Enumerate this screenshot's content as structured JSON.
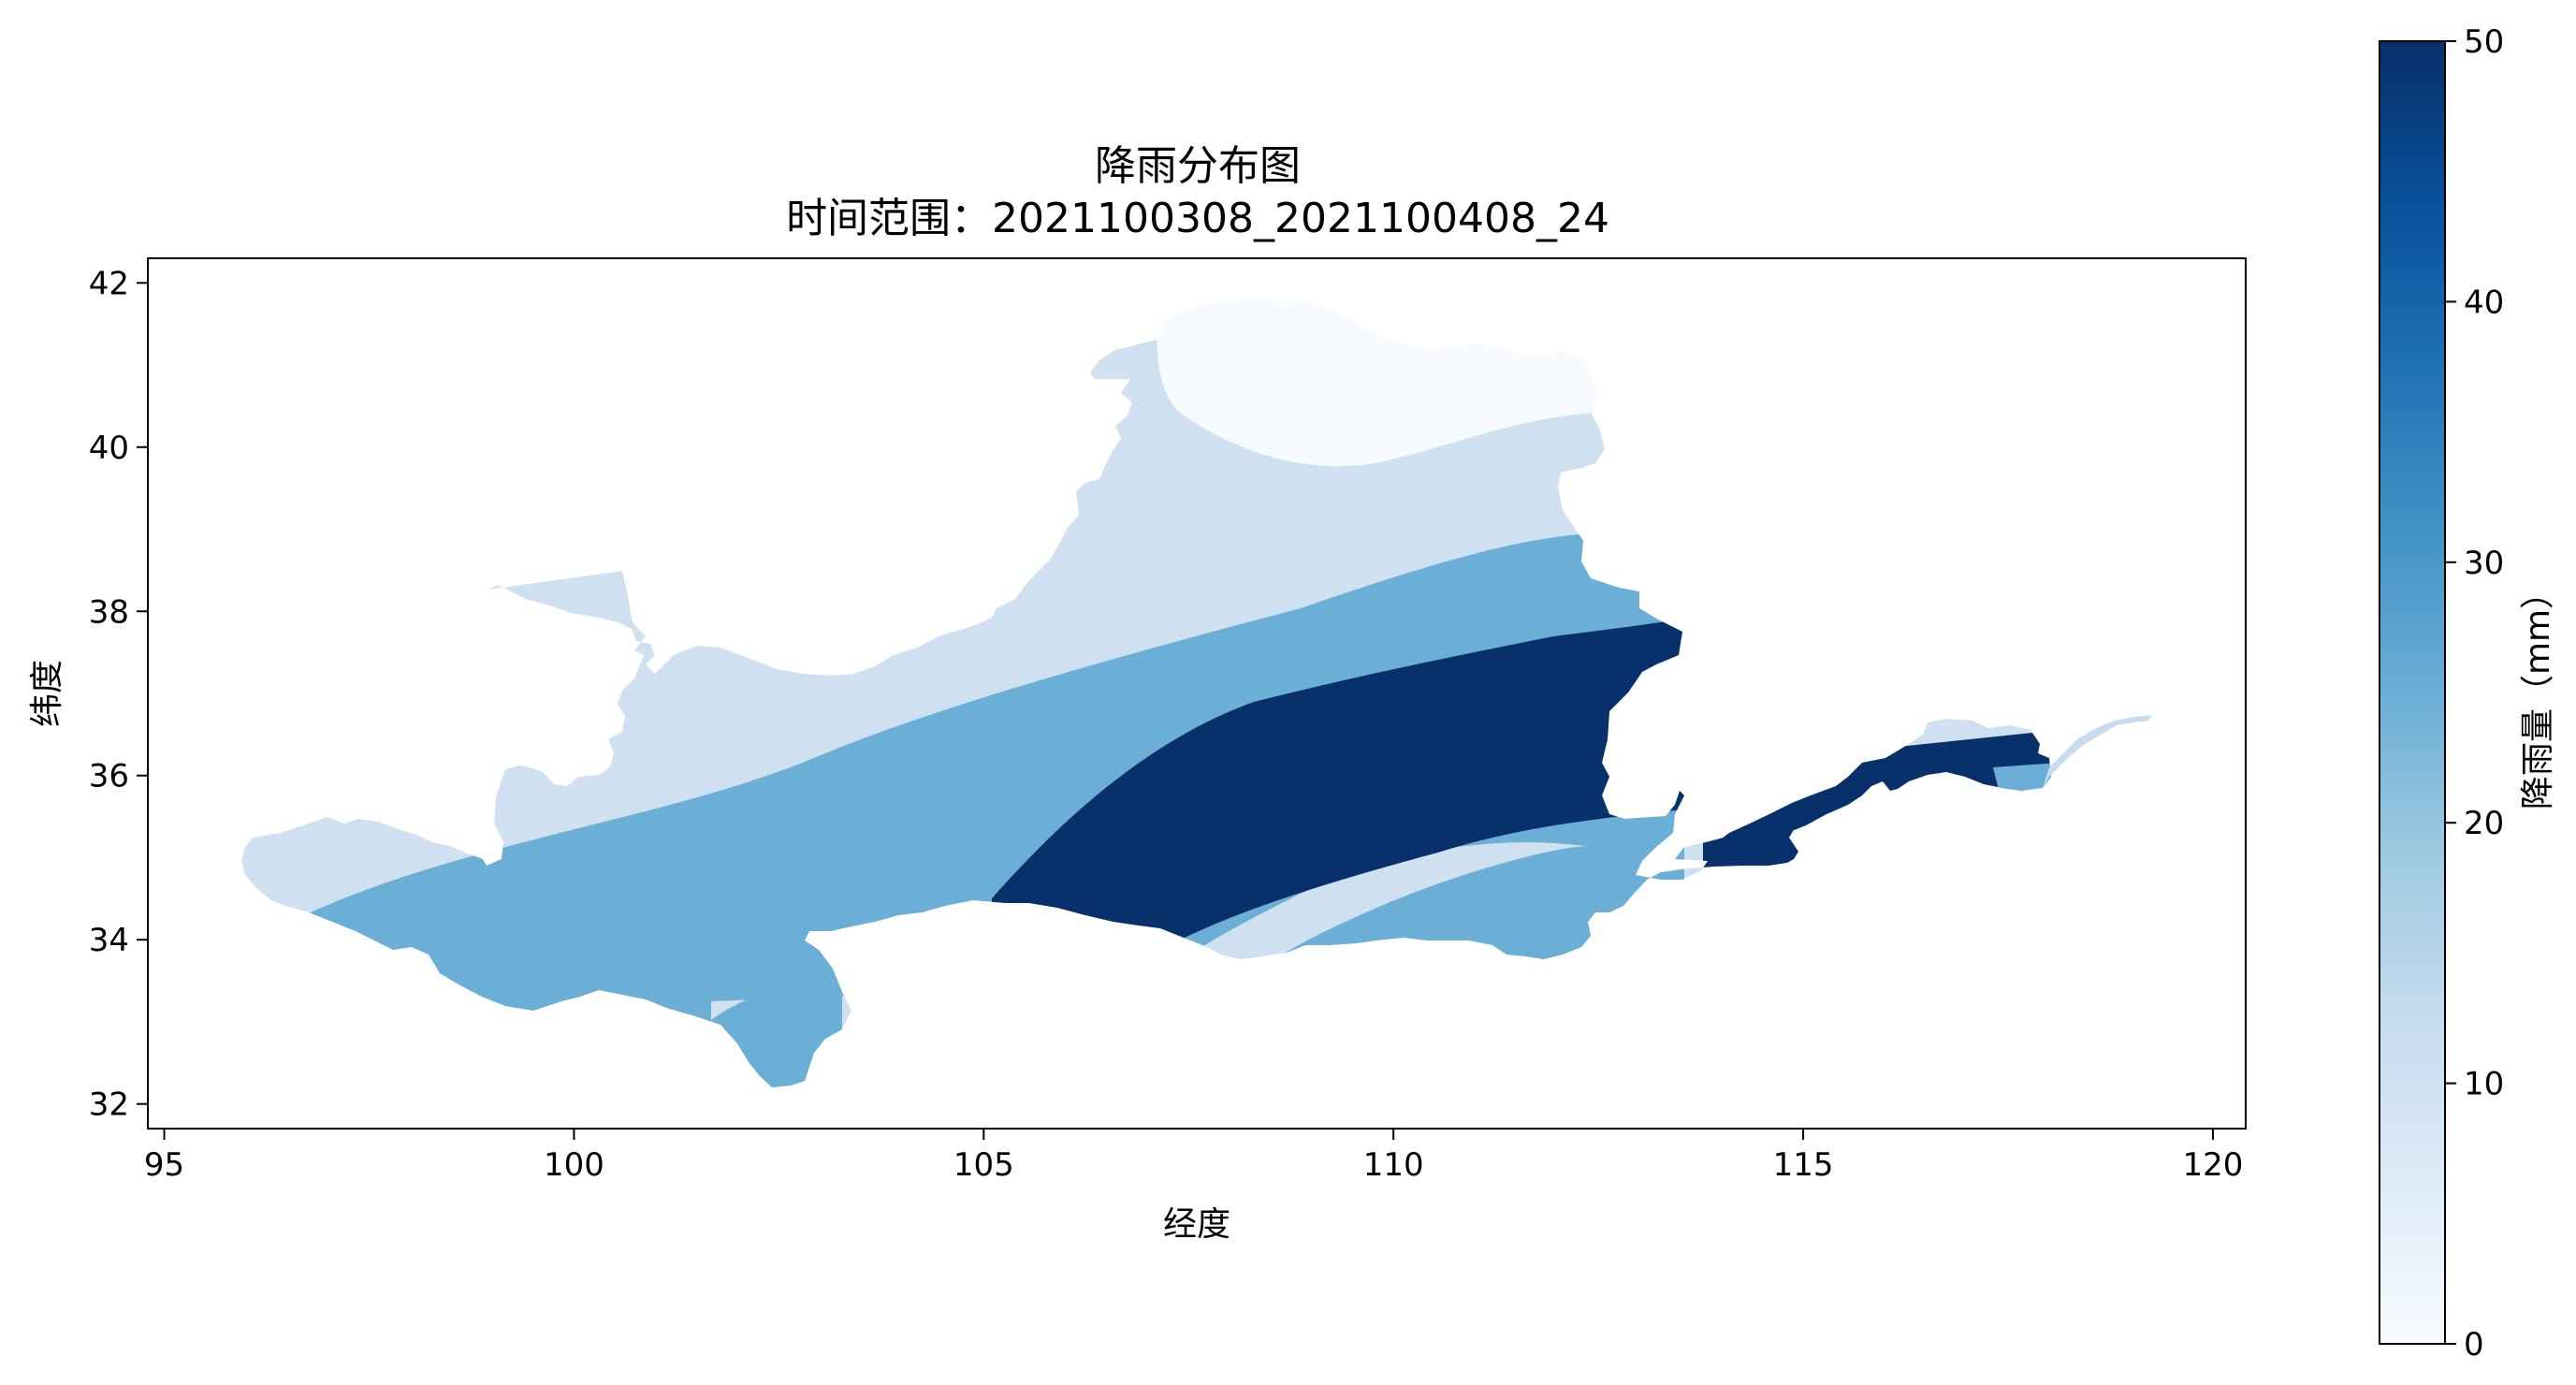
{
  "figure": {
    "title": "降雨分布图",
    "subtitle": "时间范围：2021100308_2021100408_24"
  },
  "axes": {
    "xlabel": "经度",
    "ylabel": "纬度",
    "xlim": [
      94.8,
      120.4
    ],
    "ylim": [
      31.7,
      42.3
    ],
    "xticks": [
      "95",
      "100",
      "105",
      "110",
      "115",
      "120"
    ],
    "yticks": [
      "32",
      "34",
      "36",
      "38",
      "40",
      "42"
    ]
  },
  "colorbar": {
    "label": "降雨量（mm）",
    "range": [
      0,
      50
    ],
    "ticks": [
      "0",
      "10",
      "20",
      "30",
      "40",
      "50"
    ],
    "colormap": "Blues",
    "stops": [
      "#f7fbff",
      "#deebf7",
      "#c6dbef",
      "#9ecae1",
      "#6baed6",
      "#4292c6",
      "#2171b5",
      "#08519c",
      "#08306b"
    ]
  },
  "chart_data": {
    "type": "heatmap",
    "title": "降雨分布图",
    "subtitle": "时间范围：2021100308_2021100408_24",
    "xlabel": "经度",
    "ylabel": "纬度",
    "xlim": [
      94.8,
      120.4
    ],
    "ylim": [
      31.7,
      42.3
    ],
    "clim": [
      0,
      50
    ],
    "colorbar_label": "降雨量（mm）",
    "regions": [
      {
        "band": "0-5 mm",
        "color": "#f7fbff",
        "area": "north, around 107.5-112 E, 40-41.7 N"
      },
      {
        "band": "5-20 mm",
        "color": "#cfe0f1",
        "area": "northwest basin and upper plateau; patch around 109-112 E, 34 N"
      },
      {
        "band": "20-30 mm",
        "color": "#6baed6",
        "area": "central belt from 97 E to 113 E"
      },
      {
        "band": ">=50 mm",
        "color": "#08306b",
        "area": "105.5-113.5 E, 34.3-37.8 N and lower reaches 114-117.6 E"
      }
    ]
  }
}
